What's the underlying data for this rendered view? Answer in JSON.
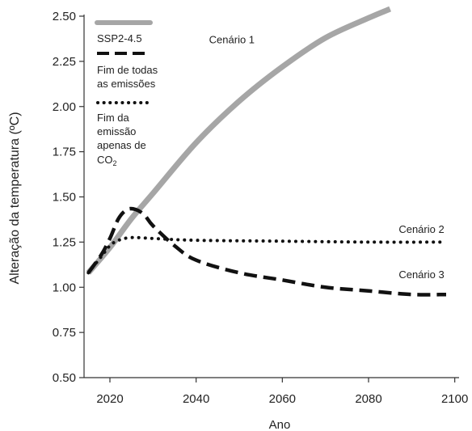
{
  "chart_data": {
    "type": "line",
    "xlabel": "Ano",
    "ylabel": "Alteração da temperatura (ºC)",
    "xlim": [
      2014,
      2101
    ],
    "ylim": [
      0.5,
      2.5
    ],
    "xticks": [
      "2020",
      "2040",
      "2060",
      "2080",
      "2100"
    ],
    "xtick_values": [
      2020,
      2040,
      2060,
      2080,
      2100
    ],
    "yticks": [
      "0.50",
      "0.75",
      "1.00",
      "1.25",
      "1.50",
      "1.75",
      "2.00",
      "2.25",
      "2.50"
    ],
    "ytick_values": [
      0.5,
      0.75,
      1.0,
      1.25,
      1.5,
      1.75,
      2.0,
      2.25,
      2.5
    ],
    "grid": false,
    "legend_position": "top-left",
    "legend": {
      "ssp": "SSP2-4.5",
      "all_line1": "Fim de todas",
      "all_line2": "as emissões",
      "co2_line1": "Fim da",
      "co2_line2": "emissão",
      "co2_line3": "apenas de",
      "co2_line4_main": "CO",
      "co2_line4_sub": "2"
    },
    "series": [
      {
        "key": "ssp",
        "style": "solid",
        "color": "#a6a6a6",
        "annotation": "Cenário 1",
        "annotation_at": [
          2043,
          2.35
        ],
        "x": [
          2015,
          2020,
          2025,
          2030,
          2040,
          2050,
          2060,
          2070,
          2080,
          2085
        ],
        "y": [
          1.08,
          1.22,
          1.38,
          1.52,
          1.8,
          2.03,
          2.22,
          2.38,
          2.49,
          2.54
        ]
      },
      {
        "key": "all",
        "style": "dashed",
        "color": "#111111",
        "annotation": "Cenário 3",
        "annotation_at": [
          2087,
          1.05
        ],
        "x": [
          2015,
          2018,
          2020,
          2022,
          2024,
          2026,
          2028,
          2030,
          2035,
          2040,
          2050,
          2060,
          2070,
          2080,
          2090,
          2098
        ],
        "y": [
          1.08,
          1.18,
          1.27,
          1.38,
          1.43,
          1.43,
          1.4,
          1.34,
          1.23,
          1.15,
          1.08,
          1.04,
          1.0,
          0.98,
          0.96,
          0.96
        ]
      },
      {
        "key": "co2",
        "style": "dotted",
        "color": "#111111",
        "annotation": "Cenário 2",
        "annotation_at": [
          2087,
          1.3
        ],
        "x": [
          2015,
          2018,
          2020,
          2022,
          2025,
          2030,
          2040,
          2060,
          2080,
          2098
        ],
        "y": [
          1.08,
          1.17,
          1.23,
          1.26,
          1.275,
          1.27,
          1.26,
          1.255,
          1.25,
          1.25
        ]
      }
    ]
  }
}
